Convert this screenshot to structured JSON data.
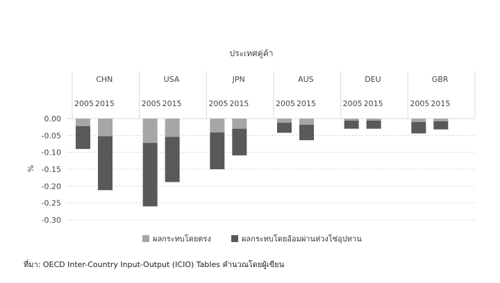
{
  "chart_data": {
    "type": "bar",
    "stacked": true,
    "title": "ประเทศคู่ค้า",
    "ylabel": "%",
    "ylim": [
      -0.3,
      0.0
    ],
    "yticks": [
      "0.00",
      "-0.05",
      "-0.10",
      "-0.15",
      "-0.20",
      "-0.25",
      "-0.30"
    ],
    "ytick_values": [
      0,
      -0.05,
      -0.1,
      -0.15,
      -0.2,
      -0.25,
      -0.3
    ],
    "grid": true,
    "legend_position": "bottom",
    "groups": [
      {
        "name": "CHN",
        "years": [
          "2005",
          "2015"
        ],
        "direct": [
          -0.022,
          -0.052
        ],
        "indirect": [
          -0.068,
          -0.16
        ]
      },
      {
        "name": "USA",
        "years": [
          "2005",
          "2015"
        ],
        "direct": [
          -0.072,
          -0.054
        ],
        "indirect": [
          -0.188,
          -0.134
        ]
      },
      {
        "name": "JPN",
        "years": [
          "2005",
          "2015"
        ],
        "direct": [
          -0.041,
          -0.03
        ],
        "indirect": [
          -0.109,
          -0.079
        ]
      },
      {
        "name": "AUS",
        "years": [
          "2005",
          "2015"
        ],
        "direct": [
          -0.012,
          -0.018
        ],
        "indirect": [
          -0.03,
          -0.046
        ]
      },
      {
        "name": "DEU",
        "years": [
          "2005",
          "2015"
        ],
        "direct": [
          -0.006,
          -0.006
        ],
        "indirect": [
          -0.024,
          -0.024
        ]
      },
      {
        "name": "GBR",
        "years": [
          "2005",
          "2015"
        ],
        "direct": [
          -0.01,
          -0.008
        ],
        "indirect": [
          -0.034,
          -0.024
        ]
      }
    ],
    "series": [
      {
        "name": "ผลกระทบโดยตรง",
        "color": "#a6a6a6"
      },
      {
        "name": "ผลกระทบโดยอ้อมผ่านห่วงโซ่อุปทาน",
        "color": "#595959"
      }
    ]
  },
  "source_text": "ที่มา: OECD Inter-Country Input-Output (ICIO) Tables คำนวณโดยผู้เขียน"
}
